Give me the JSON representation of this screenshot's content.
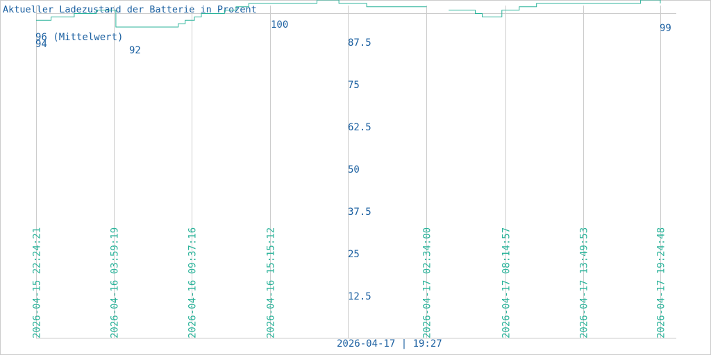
{
  "chart_data": {
    "type": "line",
    "title": "Aktueller Ladezustand der Batterie in Prozent",
    "ylim": [
      0,
      100
    ],
    "y_ticks": [
      "87.5",
      "75",
      "62.5",
      "50",
      "37.5",
      "25",
      "12.5"
    ],
    "y_tick_values": [
      87.5,
      75,
      62.5,
      50,
      37.5,
      25,
      12.5
    ],
    "x_range": [
      "2026-04-15 22:24:21",
      "2026-04-17 19:24:48"
    ],
    "x_ticks": [
      "2026-04-15 22:24:21",
      "2026-04-16 03:59:19",
      "2026-04-16 09:37:16",
      "2026-04-16 15:15:12",
      "2026-04-17 02:34:00",
      "2026-04-17 08:14:57",
      "2026-04-17 13:49:53",
      "2026-04-17 19:24:48"
    ],
    "footer": "2026-04-17 | 19:27",
    "mean_value": 96,
    "mean_label": "96 (Mittelwert)",
    "first_label": "94",
    "min_label": "92",
    "max_label": "100",
    "last_label": "99",
    "grid": true,
    "colors": {
      "line": "#2bb39a",
      "text": "#1a5fa0",
      "grid": "#cccccc",
      "mean": "#cccccc"
    },
    "series": [
      {
        "x": [
          "2026-04-15 22:24:21",
          "2026-04-15 23:29:21",
          "2026-04-16 01:09:21",
          "2026-04-16 02:44:21",
          "2026-04-16 04:09:21",
          "2026-04-16 08:39:21",
          "2026-04-16 09:09:21",
          "2026-04-16 09:49:21",
          "2026-04-16 10:19:21",
          "2026-04-16 11:59:21",
          "2026-04-16 12:49:21",
          "2026-04-16 13:44:21",
          "2026-04-16 18:39:21",
          "2026-04-16 20:14:21",
          "2026-04-16 22:14:21",
          "2026-04-17 04:09:21",
          "2026-04-17 06:04:21",
          "2026-04-17 06:34:21",
          "2026-04-17 07:59:21",
          "2026-04-17 09:14:21",
          "2026-04-17 10:29:21",
          "2026-04-17 17:59:21",
          "2026-04-17 19:24:48"
        ],
        "values": [
          94,
          95,
          96,
          97,
          92,
          93,
          94,
          95,
          96,
          97,
          98,
          99,
          100,
          99,
          98,
          97,
          96,
          95,
          97,
          98,
          99,
          100,
          99
        ]
      }
    ],
    "gaps": [
      [
        "2026-04-17 02:34:00",
        "2026-04-17 04:09:21"
      ]
    ]
  }
}
